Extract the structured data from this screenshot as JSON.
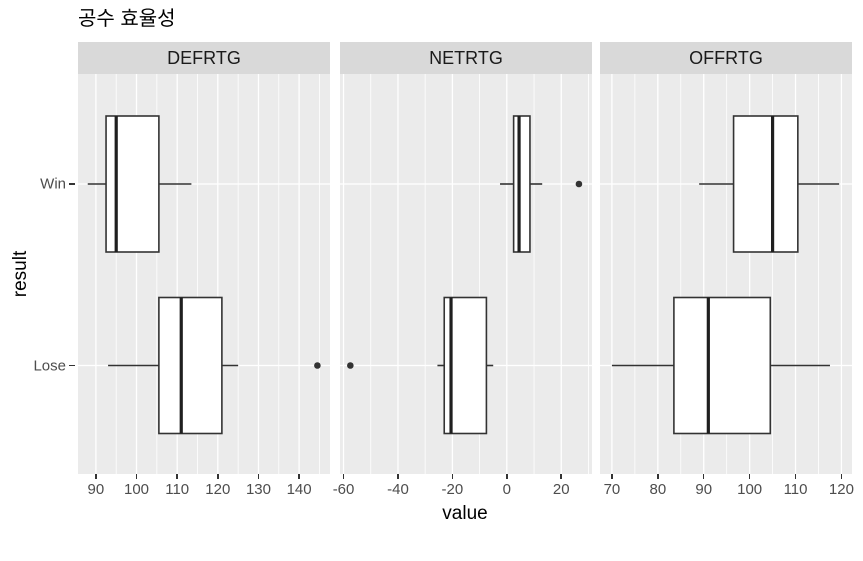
{
  "title": "공수 효율성",
  "colors": {
    "panel_bg": "#EBEBEB",
    "strip_bg": "#D9D9D9",
    "grid": "#FFFFFF",
    "box_border": "#333333",
    "box_fill": "#FFFFFF",
    "median": "#1F1F1F",
    "outlier": "#333333",
    "axis_text": "#4D4D4D",
    "strip_text": "#1A1A1A",
    "tick_mark": "#333333"
  },
  "chart_data": {
    "type": "boxplot",
    "orientation": "horizontal",
    "title": "공수 효율성",
    "xlabel": "value",
    "ylabel": "result",
    "categories": [
      "Win",
      "Lose"
    ],
    "grid": "on",
    "facets": [
      {
        "label": "DEFRTG",
        "xlim": [
          85.6,
          147.6
        ],
        "breaks": [
          90,
          100,
          110,
          120,
          130,
          140
        ],
        "minor_breaks": [
          95,
          105,
          115,
          125,
          135,
          145
        ],
        "boxes": [
          {
            "group": "Win",
            "min": 88,
            "q1": 92.5,
            "median": 95,
            "q3": 105.5,
            "max": 113.5,
            "outliers": []
          },
          {
            "group": "Lose",
            "min": 93,
            "q1": 105.5,
            "median": 111,
            "q3": 121,
            "max": 125,
            "outliers": [
              144.5
            ]
          }
        ]
      },
      {
        "label": "NETRTG",
        "xlim": [
          -61.3,
          31.3
        ],
        "breaks": [
          -60,
          -40,
          -20,
          0,
          20
        ],
        "minor_breaks": [
          -50,
          -30,
          -10,
          10,
          30
        ],
        "boxes": [
          {
            "group": "Win",
            "min": -2.5,
            "q1": 2.5,
            "median": 4.5,
            "q3": 8.5,
            "max": 13,
            "outliers": [
              26.5
            ]
          },
          {
            "group": "Lose",
            "min": -25.5,
            "q1": -23,
            "median": -20.5,
            "q3": -7.5,
            "max": -5,
            "outliers": [
              -57.5
            ]
          }
        ]
      },
      {
        "label": "OFFRTG",
        "xlim": [
          67.4,
          122.3
        ],
        "breaks": [
          70,
          80,
          90,
          100,
          110,
          120
        ],
        "minor_breaks": [
          75,
          85,
          95,
          105,
          115
        ],
        "boxes": [
          {
            "group": "Win",
            "min": 89,
            "q1": 96.5,
            "median": 105,
            "q3": 110.5,
            "max": 119.5,
            "outliers": []
          },
          {
            "group": "Lose",
            "min": 70,
            "q1": 83.5,
            "median": 91,
            "q3": 104.5,
            "max": 117.5,
            "outliers": []
          }
        ]
      }
    ]
  }
}
